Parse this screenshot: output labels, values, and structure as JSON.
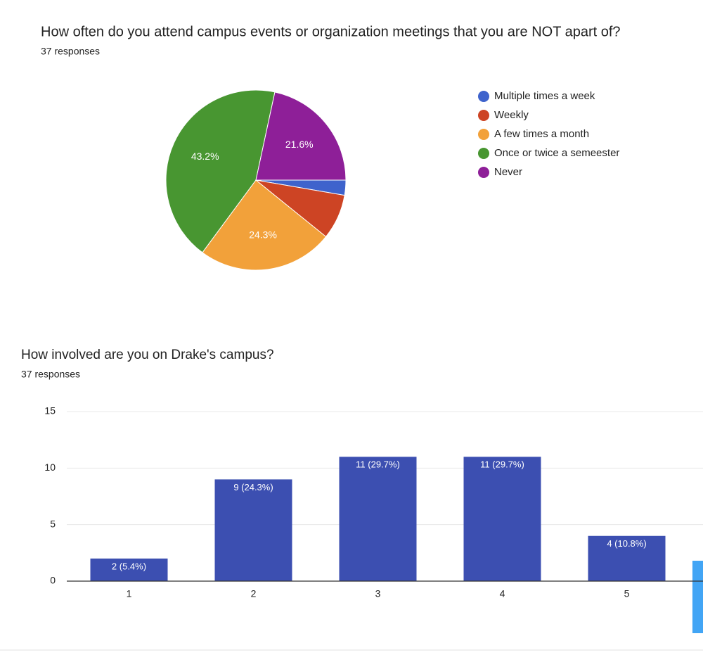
{
  "chart_data": [
    {
      "type": "pie",
      "title": "How often do you attend campus events or organization meetings that you are NOT apart of?",
      "subtitle": "37 responses",
      "categories": [
        "Multiple times a week",
        "Weekly",
        "A few times a month",
        "Once or twice a semeester",
        "Never"
      ],
      "values": [
        2.7,
        8.1,
        24.3,
        43.2,
        21.6
      ],
      "value_labels": [
        null,
        null,
        "24.3%",
        "43.2%",
        "21.6%"
      ],
      "colors": [
        "#3e63cc",
        "#cd4424",
        "#f2a13a",
        "#489631",
        "#8e1f98"
      ],
      "legend": "right"
    },
    {
      "type": "bar",
      "title": "How involved are you on Drake's campus?",
      "subtitle": "37 responses",
      "categories": [
        "1",
        "2",
        "3",
        "4",
        "5"
      ],
      "values": [
        2,
        9,
        11,
        11,
        4
      ],
      "value_labels": [
        "2 (5.4%)",
        "9 (24.3%)",
        "11 (29.7%)",
        "11 (29.7%)",
        "4 (10.8%)"
      ],
      "color": "#3c4fb1",
      "ylim": [
        0,
        15
      ],
      "yticks": [
        0,
        5,
        10,
        15
      ],
      "grid": true
    }
  ]
}
